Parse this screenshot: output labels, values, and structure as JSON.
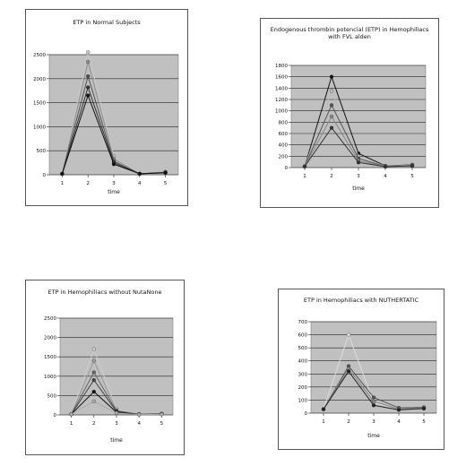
{
  "chart_data": [
    {
      "type": "line",
      "title": "ETP in Normal Subjects",
      "xlabel": "time",
      "ylabel": "",
      "x": [
        1,
        2,
        3,
        4,
        5
      ],
      "yticks": [
        "0",
        "500",
        "1000",
        "1500",
        "2000",
        "2500"
      ],
      "ylim": [
        0,
        2500
      ],
      "grid": true,
      "series": [
        {
          "color": "#c8c8c8",
          "values": [
            20,
            2550,
            380,
            20,
            60
          ]
        },
        {
          "color": "#8c8c8c",
          "values": [
            20,
            2350,
            330,
            20,
            55
          ]
        },
        {
          "color": "#505050",
          "values": [
            20,
            2050,
            280,
            20,
            50
          ]
        },
        {
          "color": "#303030",
          "values": [
            20,
            1820,
            250,
            20,
            45
          ]
        },
        {
          "color": "#111111",
          "values": [
            20,
            1650,
            220,
            20,
            40
          ]
        }
      ]
    },
    {
      "type": "line",
      "title": "Endogenous thrombin potencial (ETP) in Hemophiliacs with FVL alden",
      "xlabel": "time",
      "ylabel": "",
      "x": [
        1,
        2,
        3,
        4,
        5
      ],
      "yticks": [
        "0",
        "200",
        "400",
        "600",
        "800",
        "1000",
        "1200",
        "1400",
        "1600",
        "1800"
      ],
      "ylim": [
        0,
        1800
      ],
      "grid": true,
      "series": [
        {
          "color": "#111111",
          "values": [
            20,
            1600,
            250,
            30,
            50
          ]
        },
        {
          "color": "#bbbbbb",
          "values": [
            20,
            1350,
            200,
            25,
            45
          ]
        },
        {
          "color": "#555555",
          "values": [
            20,
            1100,
            160,
            20,
            40
          ]
        },
        {
          "color": "#888888",
          "values": [
            20,
            900,
            120,
            20,
            35
          ]
        },
        {
          "color": "#333333",
          "values": [
            20,
            700,
            90,
            15,
            30
          ]
        }
      ]
    },
    {
      "type": "line",
      "title": "ETP in Hemophiliacs without NutaNone",
      "xlabel": "time",
      "ylabel": "",
      "x": [
        1,
        2,
        3,
        4,
        5
      ],
      "yticks": [
        "0",
        "500",
        "1000",
        "1500",
        "2000",
        "2500"
      ],
      "ylim": [
        0,
        2500
      ],
      "grid": true,
      "series": [
        {
          "color": "#cccccc",
          "values": [
            20,
            1700,
            150,
            20,
            30
          ]
        },
        {
          "color": "#999999",
          "values": [
            20,
            1400,
            120,
            20,
            30
          ]
        },
        {
          "color": "#666666",
          "values": [
            20,
            1100,
            100,
            15,
            25
          ]
        },
        {
          "color": "#444444",
          "values": [
            20,
            900,
            90,
            15,
            25
          ]
        },
        {
          "color": "#111111",
          "values": [
            20,
            600,
            70,
            10,
            20
          ]
        },
        {
          "color": "#aaaaaa",
          "values": [
            20,
            350,
            50,
            10,
            15
          ]
        }
      ]
    },
    {
      "type": "line",
      "title": "ETP in Hemophiliacs with NUTHERTATIC",
      "xlabel": "time",
      "ylabel": "",
      "x": [
        1,
        2,
        3,
        4,
        5
      ],
      "yticks": [
        "0",
        "100",
        "200",
        "300",
        "400",
        "500",
        "600",
        "700"
      ],
      "ylim": [
        0,
        700
      ],
      "grid": true,
      "series": [
        {
          "color": "#dddddd",
          "values": [
            30,
            600,
            80,
            30,
            40
          ]
        },
        {
          "color": "#555555",
          "values": [
            30,
            360,
            120,
            40,
            45
          ]
        },
        {
          "color": "#888888",
          "values": [
            30,
            340,
            90,
            30,
            40
          ]
        },
        {
          "color": "#222222",
          "values": [
            30,
            320,
            60,
            25,
            35
          ]
        }
      ]
    }
  ]
}
